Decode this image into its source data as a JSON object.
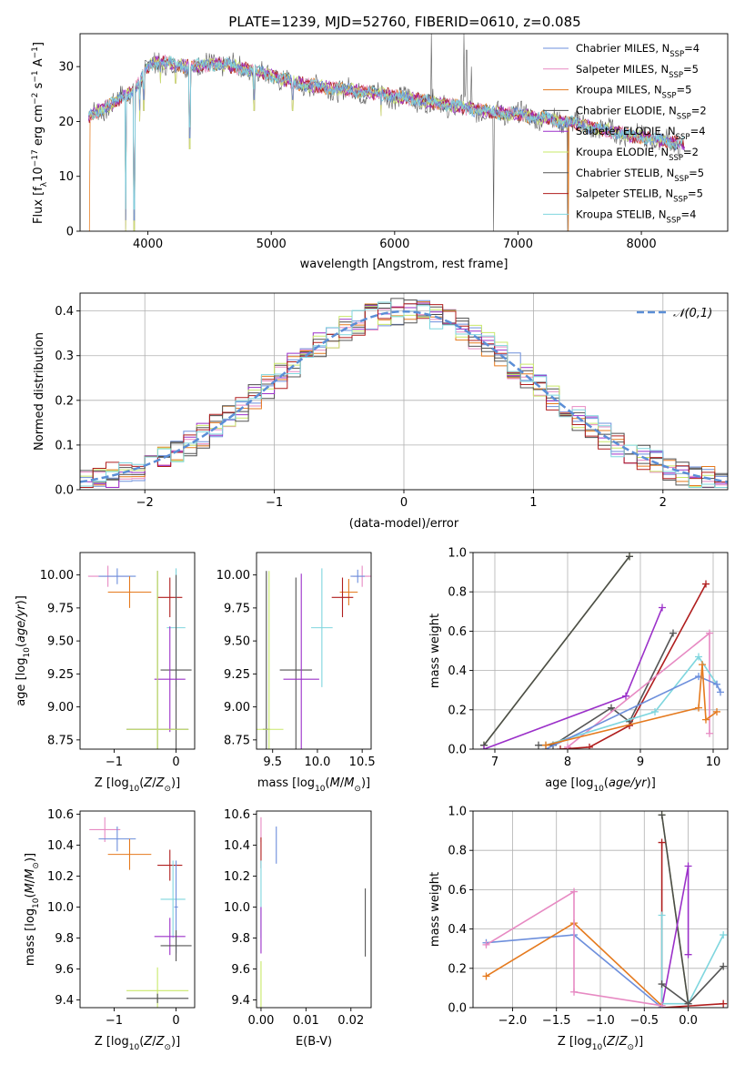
{
  "colors": {
    "Chabrier MILES": "#6d8fdc",
    "Salpeter MILES": "#e78ac3",
    "Kroupa MILES": "#e57a1e",
    "Chabrier ELODIE": "#4b4b4b",
    "Salpeter ELODIE": "#9b30c9",
    "Kroupa ELODIE": "#c9e86a",
    "Chabrier STELIB": "#555555",
    "Salpeter STELIB": "#b01e1e",
    "Kroupa STELIB": "#7fd6de"
  },
  "chart_data": [
    {
      "id": "spectrum",
      "type": "line",
      "title": "PLATE=1239, MJD=52760, FIBERID=0610, z=0.085",
      "xlabel": "wavelength [Angstrom, rest frame]",
      "ylabel": "Flux [f_λ 10^-17 erg cm^-2 s^-1 A^-1]",
      "xlim": [
        3450,
        8700
      ],
      "ylim": [
        0,
        36
      ],
      "xticks": [
        4000,
        5000,
        6000,
        7000,
        8000
      ],
      "yticks": [
        0,
        10,
        20,
        30
      ],
      "legend_position": "top-right",
      "legend": [
        {
          "model": "Chabrier MILES",
          "label": "Chabrier MILES, N",
          "sub": "SSP",
          "suffix": "=4"
        },
        {
          "model": "Salpeter MILES",
          "label": "Salpeter MILES, N",
          "sub": "SSP",
          "suffix": "=5"
        },
        {
          "model": "Kroupa MILES",
          "label": "Kroupa MILES, N",
          "sub": "SSP",
          "suffix": "=5"
        },
        {
          "model": "Chabrier ELODIE",
          "label": "Chabrier ELODIE, N",
          "sub": "SSP",
          "suffix": "=2"
        },
        {
          "model": "Salpeter ELODIE",
          "label": "Salpeter ELODIE, N",
          "sub": "SSP",
          "suffix": "=4"
        },
        {
          "model": "Kroupa ELODIE",
          "label": "Kroupa ELODIE, N",
          "sub": "SSP",
          "suffix": "=2"
        },
        {
          "model": "Chabrier STELIB",
          "label": "Chabrier STELIB, N",
          "sub": "SSP",
          "suffix": "=5"
        },
        {
          "model": "Salpeter STELIB",
          "label": "Salpeter STELIB, N",
          "sub": "SSP",
          "suffix": "=5"
        },
        {
          "model": "Kroupa STELIB",
          "label": "Kroupa STELIB, N",
          "sub": "SSP",
          "suffix": "=4"
        }
      ],
      "continuum": [
        [
          3520,
          21
        ],
        [
          3700,
          23
        ],
        [
          3900,
          26
        ],
        [
          4000,
          30
        ],
        [
          4100,
          31
        ],
        [
          4300,
          30
        ],
        [
          4600,
          30.5
        ],
        [
          4900,
          29
        ],
        [
          5200,
          27
        ],
        [
          5500,
          26
        ],
        [
          5900,
          25
        ],
        [
          6300,
          23.5
        ],
        [
          6700,
          22
        ],
        [
          7100,
          21
        ],
        [
          7500,
          19.5
        ],
        [
          7900,
          17.5
        ],
        [
          8300,
          16
        ]
      ],
      "absorption_lines": [
        [
          3820,
          0
        ],
        [
          3890,
          0
        ],
        [
          3934,
          20
        ],
        [
          3968,
          22
        ],
        [
          4102,
          27
        ],
        [
          4227,
          27
        ],
        [
          4340,
          15
        ],
        [
          4861,
          22
        ],
        [
          5175,
          22
        ],
        [
          5890,
          21
        ]
      ],
      "spikes": [
        [
          6300,
          36
        ],
        [
          6563,
          36
        ],
        [
          6583,
          33
        ],
        [
          6620,
          30
        ],
        [
          6800,
          0
        ],
        [
          7400,
          0
        ]
      ]
    },
    {
      "id": "residuals",
      "type": "histogram",
      "xlabel": "(data-model)/error",
      "ylabel": "Normed distribution",
      "xlim": [
        -2.5,
        2.5
      ],
      "ylim": [
        0,
        0.44
      ],
      "xticks": [
        -2,
        -1,
        0,
        1,
        2
      ],
      "yticks": [
        0.0,
        0.1,
        0.2,
        0.3,
        0.4
      ],
      "bin_width": 0.1,
      "grid": true,
      "reference_label": "𝒩(0,1)",
      "reference_color": "#5b8ed6",
      "legend_position": "top-right"
    },
    {
      "id": "age_vs_Z",
      "type": "errorbar",
      "xlabel": "Z [log10(Z/Z⊙)]",
      "ylabel": "age  [log10(age/yr)]",
      "xlim": [
        -1.55,
        0.3
      ],
      "ylim": [
        8.68,
        10.17
      ],
      "xticks": [
        -1,
        0
      ],
      "yticks": [
        8.75,
        9.0,
        9.25,
        9.5,
        9.75,
        10.0
      ],
      "points": [
        {
          "model": "Salpeter MILES",
          "x": -1.1,
          "xerr": 0.32,
          "y": 9.99,
          "yerr": 0.08
        },
        {
          "model": "Chabrier MILES",
          "x": -0.95,
          "xerr": 0.3,
          "y": 9.99,
          "yerr": 0.06
        },
        {
          "model": "Kroupa MILES",
          "x": -0.75,
          "xerr": 0.35,
          "y": 9.87,
          "yerr": 0.12
        },
        {
          "model": "Chabrier ELODIE",
          "x": -0.3,
          "xerr": 0.5,
          "y": 8.83,
          "yerr": 1.2
        },
        {
          "model": "Salpeter STELIB",
          "x": -0.1,
          "xerr": 0.2,
          "y": 9.83,
          "yerr": 0.15
        },
        {
          "model": "Kroupa STELIB",
          "x": 0.0,
          "xerr": 0.15,
          "y": 9.6,
          "yerr": 0.45
        },
        {
          "model": "Chabrier STELIB",
          "x": 0.0,
          "xerr": 0.25,
          "y": 9.28,
          "yerr": 0.72
        },
        {
          "model": "Salpeter ELODIE",
          "x": -0.1,
          "xerr": 0.25,
          "y": 9.21,
          "yerr": 0.4
        },
        {
          "model": "Kroupa ELODIE",
          "x": -0.3,
          "xerr": 0.5,
          "y": 8.83,
          "yerr": 1.2
        }
      ]
    },
    {
      "id": "age_vs_mass",
      "type": "errorbar",
      "xlabel": "mass [log10(M/M⊙)]",
      "xlim": [
        9.32,
        10.6
      ],
      "ylim": [
        8.68,
        10.17
      ],
      "xticks": [
        9.5,
        10.0,
        10.5
      ],
      "yticks": [
        8.75,
        9.0,
        9.25,
        9.5,
        9.75,
        10.0
      ],
      "points": [
        {
          "model": "Salpeter MILES",
          "x": 10.5,
          "xerr": 0.1,
          "y": 9.99,
          "yerr": 0.08
        },
        {
          "model": "Chabrier MILES",
          "x": 10.45,
          "xerr": 0.08,
          "y": 9.99,
          "yerr": 0.05
        },
        {
          "model": "Kroupa MILES",
          "x": 10.35,
          "xerr": 0.1,
          "y": 9.87,
          "yerr": 0.1
        },
        {
          "model": "Salpeter STELIB",
          "x": 10.28,
          "xerr": 0.12,
          "y": 9.83,
          "yerr": 0.15
        },
        {
          "model": "Kroupa STELIB",
          "x": 10.05,
          "xerr": 0.12,
          "y": 9.6,
          "yerr": 0.45
        },
        {
          "model": "Chabrier STELIB",
          "x": 9.76,
          "xerr": 0.18,
          "y": 9.28,
          "yerr": 0.7
        },
        {
          "model": "Salpeter ELODIE",
          "x": 9.82,
          "xerr": 0.2,
          "y": 9.21,
          "yerr": 0.8
        },
        {
          "model": "Chabrier ELODIE",
          "x": 9.43,
          "xerr": 0.04,
          "y": 8.83,
          "yerr": 1.2
        },
        {
          "model": "Kroupa ELODIE",
          "x": 9.46,
          "xerr": 0.16,
          "y": 8.83,
          "yerr": 1.2
        }
      ]
    },
    {
      "id": "weight_vs_age",
      "type": "line",
      "xlabel": "age  [log10(age/yr)]",
      "ylabel": "mass weight",
      "xlim": [
        6.7,
        10.2
      ],
      "ylim": [
        0,
        1
      ],
      "xticks": [
        7,
        8,
        9,
        10
      ],
      "yticks": [
        0.0,
        0.2,
        0.4,
        0.6,
        0.8,
        1.0
      ],
      "grid": true,
      "series": [
        {
          "model": "Kroupa ELODIE",
          "x": [
            6.85,
            8.85
          ],
          "y": [
            0.02,
            0.98
          ]
        },
        {
          "model": "Chabrier ELODIE",
          "x": [
            6.85,
            8.85
          ],
          "y": [
            0.02,
            0.98
          ]
        },
        {
          "model": "Salpeter ELODIE",
          "x": [
            6.85,
            8.8,
            9.3
          ],
          "y": [
            0.0,
            0.27,
            0.72
          ]
        },
        {
          "model": "Salpeter STELIB",
          "x": [
            7.9,
            8.3,
            8.85,
            9.9
          ],
          "y": [
            0.0,
            0.01,
            0.12,
            0.84
          ]
        },
        {
          "model": "Chabrier STELIB",
          "x": [
            7.6,
            7.8,
            8.6,
            8.85,
            9.45
          ],
          "y": [
            0.02,
            0.02,
            0.21,
            0.14,
            0.59
          ]
        },
        {
          "model": "Salpeter MILES",
          "x": [
            8.0,
            9.95,
            9.95
          ],
          "y": [
            0.01,
            0.59,
            0.08
          ]
        },
        {
          "model": "Kroupa STELIB",
          "x": [
            7.7,
            9.2,
            9.8,
            10.05
          ],
          "y": [
            0.02,
            0.19,
            0.47,
            0.33
          ]
        },
        {
          "model": "Chabrier MILES",
          "x": [
            7.7,
            9.8,
            10.05,
            10.1
          ],
          "y": [
            0.0,
            0.37,
            0.33,
            0.29
          ]
        },
        {
          "model": "Kroupa MILES",
          "x": [
            7.7,
            9.8,
            9.85,
            9.9,
            10.05
          ],
          "y": [
            0.02,
            0.21,
            0.43,
            0.15,
            0.19
          ]
        }
      ]
    },
    {
      "id": "mass_vs_Z",
      "type": "errorbar",
      "xlabel": "Z [log10(Z/Z⊙)]",
      "ylabel": "mass [log10(M/M⊙)]",
      "xlim": [
        -1.55,
        0.3
      ],
      "ylim": [
        9.35,
        10.62
      ],
      "xticks": [
        -1,
        0
      ],
      "yticks": [
        9.4,
        9.6,
        9.8,
        10.0,
        10.2,
        10.4,
        10.6
      ],
      "points": [
        {
          "model": "Salpeter MILES",
          "x": -1.15,
          "xerr": 0.25,
          "y": 10.5,
          "yerr": 0.08
        },
        {
          "model": "Chabrier MILES",
          "x": -0.95,
          "xerr": 0.3,
          "y": 10.44,
          "yerr": 0.08
        },
        {
          "model": "Kroupa MILES",
          "x": -0.75,
          "xerr": 0.35,
          "y": 10.34,
          "yerr": 0.1
        },
        {
          "model": "Salpeter STELIB",
          "x": -0.1,
          "xerr": 0.2,
          "y": 10.27,
          "yerr": 0.1
        },
        {
          "model": "Kroupa STELIB",
          "x": -0.05,
          "xerr": 0.2,
          "y": 10.05,
          "yerr": 0.25
        },
        {
          "model": "Chabrier MILES",
          "x": 0.0,
          "xerr": 0.03,
          "y": 10.0,
          "yerr": 0.3
        },
        {
          "model": "Salpeter ELODIE",
          "x": -0.1,
          "xerr": 0.25,
          "y": 9.81,
          "yerr": 0.12
        },
        {
          "model": "Chabrier STELIB",
          "x": 0.0,
          "xerr": 0.25,
          "y": 9.75,
          "yerr": 0.1
        },
        {
          "model": "Kroupa ELODIE",
          "x": -0.3,
          "xerr": 0.5,
          "y": 9.46,
          "yerr": 0.15
        },
        {
          "model": "Chabrier ELODIE",
          "x": -0.3,
          "xerr": 0.5,
          "y": 9.41,
          "yerr": 0.03
        }
      ]
    },
    {
      "id": "mass_vs_ebv",
      "type": "errorbar",
      "xlabel": "E(B-V)",
      "xlim": [
        -0.001,
        0.0245
      ],
      "ylim": [
        9.35,
        10.62
      ],
      "xticks": [
        0.0,
        0.01,
        0.02
      ],
      "xtick_labels": [
        "0.00",
        "0.01",
        "0.02"
      ],
      "yticks": [
        9.4,
        9.6,
        9.8,
        10.0,
        10.2,
        10.4,
        10.6
      ],
      "points": [
        {
          "model": "Salpeter MILES",
          "x": 0.0,
          "xerr": 0.0,
          "y": 10.5,
          "yerr": 0.08
        },
        {
          "model": "Chabrier MILES",
          "x": 0.0034,
          "xerr": 0.0,
          "y": 10.4,
          "yerr": 0.12
        },
        {
          "model": "Salpeter STELIB",
          "x": 0.0,
          "xerr": 0.0,
          "y": 10.35,
          "yerr": 0.1
        },
        {
          "model": "Kroupa STELIB",
          "x": 0.0,
          "xerr": 0.0,
          "y": 10.05,
          "yerr": 0.25
        },
        {
          "model": "Salpeter ELODIE",
          "x": 0.0,
          "xerr": 0.0,
          "y": 9.85,
          "yerr": 0.15
        },
        {
          "model": "Kroupa ELODIE",
          "x": 0.0,
          "xerr": 0.0,
          "y": 9.5,
          "yerr": 0.15
        },
        {
          "model": "Chabrier STELIB",
          "x": 0.0232,
          "xerr": 0.0,
          "y": 9.9,
          "yerr": 0.22
        }
      ]
    },
    {
      "id": "weight_vs_Z",
      "type": "line",
      "xlabel": "Z [log10(Z/Z⊙)]",
      "ylabel": "mass weight",
      "xlim": [
        -2.45,
        0.45
      ],
      "ylim": [
        0,
        1
      ],
      "xticks": [
        -2.0,
        -1.5,
        -1.0,
        -0.5,
        0.0
      ],
      "yticks": [
        0.0,
        0.2,
        0.4,
        0.6,
        0.8,
        1.0
      ],
      "grid": true,
      "series": [
        {
          "model": "Kroupa ELODIE",
          "x": [
            -0.3,
            0.0
          ],
          "y": [
            0.98,
            0.02
          ]
        },
        {
          "model": "Chabrier ELODIE",
          "x": [
            -0.3,
            0.0
          ],
          "y": [
            0.98,
            0.02
          ]
        },
        {
          "model": "Salpeter STELIB",
          "x": [
            -0.3,
            -0.3,
            0.4
          ],
          "y": [
            0.84,
            0.0,
            0.02
          ]
        },
        {
          "model": "Salpeter ELODIE",
          "x": [
            -0.3,
            0.0,
            0.0
          ],
          "y": [
            0.0,
            0.72,
            0.27
          ]
        },
        {
          "model": "Kroupa STELIB",
          "x": [
            -0.3,
            -0.3,
            0.0,
            0.4
          ],
          "y": [
            0.47,
            0.02,
            0.02,
            0.37
          ]
        },
        {
          "model": "Chabrier STELIB",
          "x": [
            -0.3,
            0.0,
            0.4
          ],
          "y": [
            0.12,
            0.02,
            0.21
          ]
        },
        {
          "model": "Chabrier MILES",
          "x": [
            -2.3,
            -1.3,
            -0.3
          ],
          "y": [
            0.33,
            0.37,
            0.0
          ]
        },
        {
          "model": "Kroupa MILES",
          "x": [
            -2.3,
            -1.3,
            -0.3
          ],
          "y": [
            0.16,
            0.43,
            0.01
          ]
        },
        {
          "model": "Salpeter MILES",
          "x": [
            -2.3,
            -1.3,
            -1.3,
            -0.3
          ],
          "y": [
            0.32,
            0.59,
            0.08,
            0.01
          ]
        }
      ]
    }
  ]
}
